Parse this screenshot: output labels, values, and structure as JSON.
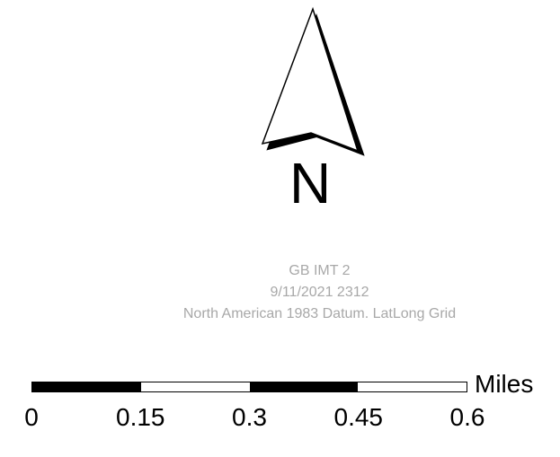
{
  "north_arrow": {
    "letter": "N",
    "icon": "north-arrow-icon"
  },
  "metadata": {
    "line1": "GB IMT 2",
    "line2": "9/11/2021 2312",
    "line3": "North American 1983 Datum. LatLong Grid",
    "color": "#a8a8a8"
  },
  "scale_bar": {
    "units": "Miles",
    "ticks": [
      "0",
      "0.15",
      "0.3",
      "0.45",
      "0.6"
    ],
    "segment_pattern": [
      "black",
      "white",
      "black",
      "white"
    ]
  }
}
